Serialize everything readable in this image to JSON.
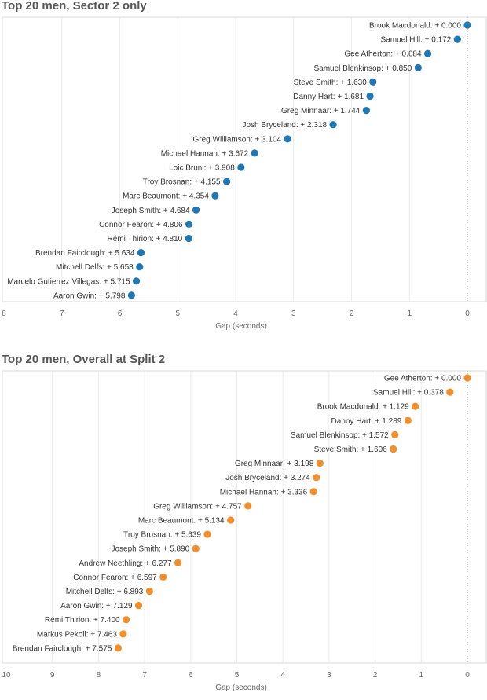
{
  "chart_data": [
    {
      "type": "scatter",
      "title": "Top 20 men, Sector 2 only",
      "xlabel": "Gap (seconds)",
      "ylabel": "",
      "xlim": [
        8,
        0
      ],
      "x_ticks": [
        "8",
        "7",
        "6",
        "5",
        "4",
        "3",
        "2",
        "1",
        "0"
      ],
      "grid": true,
      "color": "#1f77b4",
      "points": [
        {
          "name": "Brook Macdonald",
          "value": 0.0,
          "label": "Brook Macdonald: + 0.000"
        },
        {
          "name": "Samuel Hill",
          "value": 0.172,
          "label": "Samuel Hill: + 0.172"
        },
        {
          "name": "Gee Atherton",
          "value": 0.684,
          "label": "Gee Atherton: + 0.684"
        },
        {
          "name": "Samuel Blenkinsop",
          "value": 0.85,
          "label": "Samuel Blenkinsop: + 0.850"
        },
        {
          "name": "Steve Smith",
          "value": 1.63,
          "label": "Steve Smith: + 1.630"
        },
        {
          "name": "Danny Hart",
          "value": 1.681,
          "label": "Danny Hart: + 1.681"
        },
        {
          "name": "Greg Minnaar",
          "value": 1.744,
          "label": "Greg Minnaar: + 1.744"
        },
        {
          "name": "Josh Bryceland",
          "value": 2.318,
          "label": "Josh Bryceland: + 2.318"
        },
        {
          "name": "Greg Williamson",
          "value": 3.104,
          "label": "Greg Williamson: + 3.104"
        },
        {
          "name": "Michael Hannah",
          "value": 3.672,
          "label": "Michael Hannah: + 3.672"
        },
        {
          "name": "Loic Bruni",
          "value": 3.908,
          "label": "Loic Bruni: + 3.908"
        },
        {
          "name": "Troy Brosnan",
          "value": 4.155,
          "label": "Troy Brosnan: + 4.155"
        },
        {
          "name": "Marc Beaumont",
          "value": 4.354,
          "label": "Marc Beaumont: + 4.354"
        },
        {
          "name": "Joseph Smith",
          "value": 4.684,
          "label": "Joseph Smith: + 4.684"
        },
        {
          "name": "Connor Fearon",
          "value": 4.806,
          "label": "Connor Fearon: + 4.806"
        },
        {
          "name": "Rémi Thirion",
          "value": 4.81,
          "label": "Rémi Thirion: + 4.810"
        },
        {
          "name": "Brendan Fairclough",
          "value": 5.634,
          "label": "Brendan Fairclough: + 5.634"
        },
        {
          "name": "Mitchell Delfs",
          "value": 5.658,
          "label": "Mitchell Delfs: + 5.658"
        },
        {
          "name": "Marcelo Gutierrez Villegas",
          "value": 5.715,
          "label": "Marcelo Gutierrez Villegas: + 5.715"
        },
        {
          "name": "Aaron Gwin",
          "value": 5.798,
          "label": "Aaron Gwin: + 5.798"
        }
      ]
    },
    {
      "type": "scatter",
      "title": "Top 20 men, Overall at Split 2",
      "xlabel": "Gap (seconds)",
      "ylabel": "",
      "xlim": [
        10,
        0
      ],
      "x_ticks": [
        "10",
        "9",
        "8",
        "7",
        "6",
        "5",
        "4",
        "3",
        "2",
        "1",
        "0"
      ],
      "grid": true,
      "color": "#f28e2b",
      "points": [
        {
          "name": "Gee Atherton",
          "value": 0.0,
          "label": "Gee Atherton: + 0.000"
        },
        {
          "name": "Samuel Hill",
          "value": 0.378,
          "label": "Samuel Hill: + 0.378"
        },
        {
          "name": "Brook Macdonald",
          "value": 1.129,
          "label": "Brook Macdonald: + 1.129"
        },
        {
          "name": "Danny Hart",
          "value": 1.289,
          "label": "Danny Hart: + 1.289"
        },
        {
          "name": "Samuel Blenkinsop",
          "value": 1.572,
          "label": "Samuel Blenkinsop: + 1.572"
        },
        {
          "name": "Steve Smith",
          "value": 1.606,
          "label": "Steve Smith: + 1.606"
        },
        {
          "name": "Greg Minnaar",
          "value": 3.198,
          "label": "Greg Minnaar: + 3.198"
        },
        {
          "name": "Josh Bryceland",
          "value": 3.274,
          "label": "Josh Bryceland: + 3.274"
        },
        {
          "name": "Michael Hannah",
          "value": 3.336,
          "label": "Michael Hannah: + 3.336"
        },
        {
          "name": "Greg Williamson",
          "value": 4.757,
          "label": "Greg Williamson: + 4.757"
        },
        {
          "name": "Marc Beaumont",
          "value": 5.134,
          "label": "Marc Beaumont: + 5.134"
        },
        {
          "name": "Troy Brosnan",
          "value": 5.639,
          "label": "Troy Brosnan: + 5.639"
        },
        {
          "name": "Joseph Smith",
          "value": 5.89,
          "label": "Joseph Smith: + 5.890"
        },
        {
          "name": "Andrew Neethling",
          "value": 6.277,
          "label": "Andrew Neethling: + 6.277"
        },
        {
          "name": "Connor Fearon",
          "value": 6.597,
          "label": "Connor Fearon: + 6.597"
        },
        {
          "name": "Mitchell Delfs",
          "value": 6.893,
          "label": "Mitchell Delfs: + 6.893"
        },
        {
          "name": "Aaron Gwin",
          "value": 7.129,
          "label": "Aaron Gwin: + 7.129"
        },
        {
          "name": "Rémi Thirion",
          "value": 7.4,
          "label": "Rémi Thirion: + 7.400"
        },
        {
          "name": "Markus Pekoll",
          "value": 7.463,
          "label": "Markus Pekoll: + 7.463"
        },
        {
          "name": "Brendan Fairclough",
          "value": 7.575,
          "label": "Brendan Fairclough: + 7.575"
        }
      ]
    }
  ]
}
